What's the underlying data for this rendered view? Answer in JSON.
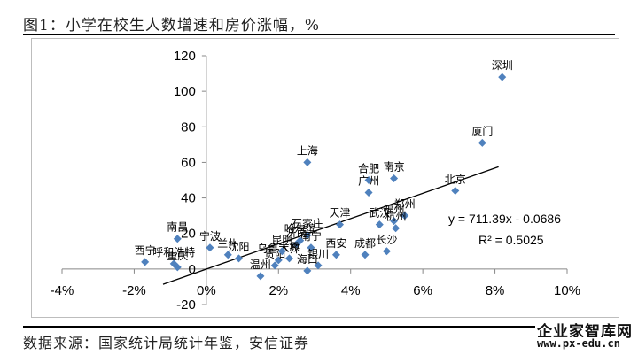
{
  "title": "图1：小学在校生人数增速和房价涨幅，%",
  "source": "数据来源：国家统计局统计年鉴，安信证券",
  "watermark": {
    "name": "企业家智库网",
    "url": "www.px-edu.cn"
  },
  "colors": {
    "marker": "#4F81BD",
    "axis": "#888888",
    "trend": "#000000",
    "text": "#000000"
  },
  "chart_data": {
    "type": "scatter",
    "title": "",
    "xlabel": "",
    "ylabel": "",
    "xlim": [
      -0.04,
      0.1
    ],
    "ylim": [
      -20,
      120
    ],
    "x_ticks": [
      -0.04,
      -0.02,
      0,
      0.02,
      0.04,
      0.06,
      0.08,
      0.1
    ],
    "x_tick_labels": [
      "-4%",
      "-2%",
      "0%",
      "2%",
      "4%",
      "6%",
      "8%",
      "10%"
    ],
    "y_ticks": [
      -20,
      0,
      20,
      40,
      60,
      80,
      100,
      120
    ],
    "y_tick_labels": [
      "-20",
      "0",
      "20",
      "40",
      "60",
      "80",
      "100",
      "120"
    ],
    "grid": false,
    "legend": "none",
    "points": [
      {
        "label": "深圳",
        "x": 0.082,
        "y": 108
      },
      {
        "label": "厦门",
        "x": 0.0765,
        "y": 71
      },
      {
        "label": "北京",
        "x": 0.069,
        "y": 44
      },
      {
        "label": "上海",
        "x": 0.028,
        "y": 60
      },
      {
        "label": "南京",
        "x": 0.052,
        "y": 51
      },
      {
        "label": "合肥",
        "x": 0.045,
        "y": 50
      },
      {
        "label": "广州",
        "x": 0.045,
        "y": 43
      },
      {
        "label": "郑州",
        "x": 0.055,
        "y": 30
      },
      {
        "label": "福州",
        "x": 0.052,
        "y": 27
      },
      {
        "label": "杭州",
        "x": 0.0525,
        "y": 23
      },
      {
        "label": "武汉",
        "x": 0.048,
        "y": 25
      },
      {
        "label": "长沙",
        "x": 0.05,
        "y": 10
      },
      {
        "label": "天津",
        "x": 0.037,
        "y": 25
      },
      {
        "label": "成都",
        "x": 0.044,
        "y": 8
      },
      {
        "label": "西安",
        "x": 0.036,
        "y": 8
      },
      {
        "label": "石家庄",
        "x": 0.028,
        "y": 19
      },
      {
        "label": "南宁",
        "x": 0.029,
        "y": 12
      },
      {
        "label": "济南",
        "x": 0.025,
        "y": 14
      },
      {
        "label": "太原",
        "x": 0.023,
        "y": 6
      },
      {
        "label": "银川",
        "x": 0.031,
        "y": 2
      },
      {
        "label": "海口",
        "x": 0.028,
        "y": -1
      },
      {
        "label": "乌鲁木齐",
        "x": 0.02,
        "y": 5
      },
      {
        "label": "温州",
        "x": 0.015,
        "y": -4
      },
      {
        "label": "沈阳",
        "x": 0.009,
        "y": 6
      },
      {
        "label": "兰州",
        "x": 0.006,
        "y": 8
      },
      {
        "label": "宁波",
        "x": 0.001,
        "y": 12
      },
      {
        "label": "南昌",
        "x": -0.008,
        "y": 17
      },
      {
        "label": "呼和浩特",
        "x": -0.009,
        "y": 3
      },
      {
        "label": "重庆",
        "x": -0.008,
        "y": 1
      },
      {
        "label": "西宁",
        "x": -0.017,
        "y": 4
      },
      {
        "label": "贵阳",
        "x": 0.019,
        "y": 2
      },
      {
        "label": "昆明",
        "x": 0.021,
        "y": 10
      },
      {
        "label": "哈尔滨",
        "x": 0.026,
        "y": 16
      }
    ],
    "trendline": {
      "slope": 711.39,
      "intercept": -0.0686,
      "x_range": [
        -0.012,
        0.081
      ]
    },
    "annotations": {
      "equation": "y = 711.39x - 0.0686",
      "r_squared": "R² = 0.5025"
    }
  }
}
